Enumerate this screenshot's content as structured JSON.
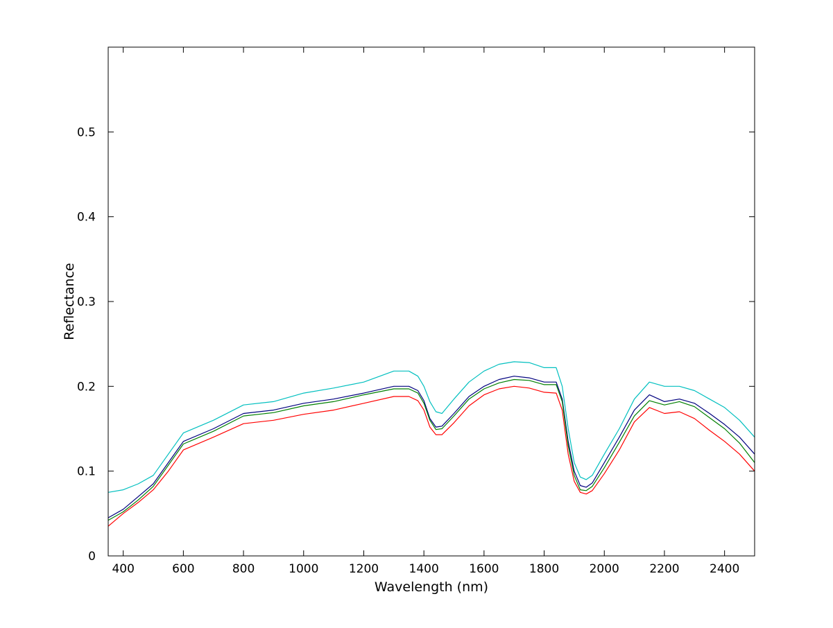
{
  "chart_data": {
    "type": "line",
    "title": "",
    "xlabel": "Wavelength (nm)",
    "ylabel": "Reflectance",
    "xlim": [
      350,
      2500
    ],
    "ylim": [
      0,
      0.6
    ],
    "xticks": [
      400,
      600,
      800,
      1000,
      1200,
      1400,
      1600,
      1800,
      2000,
      2200,
      2400
    ],
    "xtick_labels": [
      "400",
      "600",
      "800",
      "1000",
      "1200",
      "1400",
      "1600",
      "1800",
      "2000",
      "2200",
      "2400"
    ],
    "yticks": [
      0,
      0.1,
      0.2,
      0.3,
      0.4,
      0.5
    ],
    "ytick_labels": [
      "0",
      "0.1",
      "0.2",
      "0.3",
      "0.4",
      "0.5"
    ],
    "grid": false,
    "legend": "none",
    "series": [
      {
        "color": "#00bfbf",
        "x": [
          350,
          400,
          450,
          500,
          550,
          600,
          700,
          800,
          900,
          1000,
          1100,
          1200,
          1300,
          1350,
          1380,
          1400,
          1420,
          1440,
          1460,
          1500,
          1550,
          1600,
          1650,
          1700,
          1750,
          1800,
          1840,
          1860,
          1880,
          1900,
          1920,
          1940,
          1960,
          2000,
          2050,
          2100,
          2150,
          2200,
          2250,
          2300,
          2350,
          2400,
          2450,
          2500
        ],
        "y": [
          0.075,
          0.078,
          0.085,
          0.095,
          0.12,
          0.145,
          0.16,
          0.178,
          0.182,
          0.192,
          0.198,
          0.205,
          0.218,
          0.218,
          0.212,
          0.2,
          0.182,
          0.17,
          0.168,
          0.185,
          0.205,
          0.218,
          0.226,
          0.229,
          0.228,
          0.222,
          0.222,
          0.2,
          0.15,
          0.11,
          0.093,
          0.09,
          0.095,
          0.12,
          0.15,
          0.185,
          0.205,
          0.2,
          0.2,
          0.195,
          0.185,
          0.175,
          0.16,
          0.14
        ]
      },
      {
        "color": "#00007f",
        "x": [
          350,
          400,
          450,
          500,
          550,
          600,
          700,
          800,
          900,
          1000,
          1100,
          1200,
          1300,
          1350,
          1380,
          1400,
          1420,
          1440,
          1460,
          1500,
          1550,
          1600,
          1650,
          1700,
          1750,
          1800,
          1840,
          1860,
          1880,
          1900,
          1920,
          1940,
          1960,
          2000,
          2050,
          2100,
          2150,
          2200,
          2250,
          2300,
          2350,
          2400,
          2450,
          2500
        ],
        "y": [
          0.045,
          0.055,
          0.07,
          0.085,
          0.11,
          0.135,
          0.15,
          0.168,
          0.172,
          0.18,
          0.185,
          0.192,
          0.2,
          0.2,
          0.195,
          0.183,
          0.162,
          0.152,
          0.153,
          0.168,
          0.188,
          0.2,
          0.208,
          0.212,
          0.21,
          0.205,
          0.205,
          0.185,
          0.135,
          0.1,
          0.083,
          0.081,
          0.086,
          0.11,
          0.14,
          0.172,
          0.19,
          0.182,
          0.185,
          0.18,
          0.168,
          0.155,
          0.14,
          0.12
        ]
      },
      {
        "color": "#007f00",
        "x": [
          350,
          400,
          450,
          500,
          550,
          600,
          700,
          800,
          900,
          1000,
          1100,
          1200,
          1300,
          1350,
          1380,
          1400,
          1420,
          1440,
          1460,
          1500,
          1550,
          1600,
          1650,
          1700,
          1750,
          1800,
          1840,
          1860,
          1880,
          1900,
          1920,
          1940,
          1960,
          2000,
          2050,
          2100,
          2150,
          2200,
          2250,
          2300,
          2350,
          2400,
          2450,
          2500
        ],
        "y": [
          0.042,
          0.052,
          0.066,
          0.082,
          0.107,
          0.132,
          0.147,
          0.165,
          0.169,
          0.177,
          0.182,
          0.19,
          0.197,
          0.197,
          0.192,
          0.18,
          0.16,
          0.149,
          0.15,
          0.165,
          0.185,
          0.197,
          0.204,
          0.208,
          0.207,
          0.202,
          0.202,
          0.182,
          0.13,
          0.095,
          0.078,
          0.077,
          0.082,
          0.104,
          0.134,
          0.165,
          0.183,
          0.178,
          0.182,
          0.176,
          0.163,
          0.15,
          0.133,
          0.11
        ]
      },
      {
        "color": "#ff0000",
        "x": [
          350,
          400,
          450,
          500,
          550,
          600,
          700,
          800,
          900,
          1000,
          1100,
          1200,
          1300,
          1350,
          1380,
          1400,
          1420,
          1440,
          1460,
          1500,
          1550,
          1600,
          1650,
          1700,
          1750,
          1800,
          1840,
          1860,
          1880,
          1900,
          1920,
          1940,
          1960,
          2000,
          2050,
          2100,
          2150,
          2200,
          2250,
          2300,
          2350,
          2400,
          2450,
          2500
        ],
        "y": [
          0.035,
          0.05,
          0.063,
          0.078,
          0.1,
          0.125,
          0.14,
          0.156,
          0.16,
          0.167,
          0.172,
          0.18,
          0.188,
          0.188,
          0.183,
          0.172,
          0.152,
          0.143,
          0.143,
          0.157,
          0.177,
          0.19,
          0.197,
          0.2,
          0.198,
          0.193,
          0.192,
          0.172,
          0.12,
          0.088,
          0.075,
          0.073,
          0.077,
          0.097,
          0.125,
          0.158,
          0.175,
          0.168,
          0.17,
          0.162,
          0.148,
          0.135,
          0.12,
          0.1
        ]
      }
    ]
  }
}
